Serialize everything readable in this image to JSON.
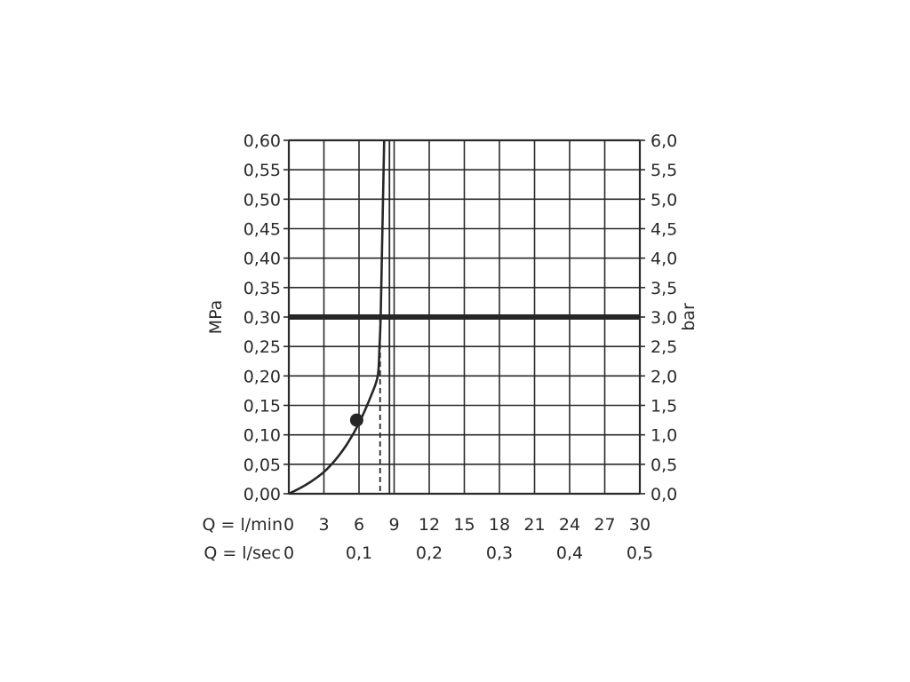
{
  "chart_data": {
    "type": "line",
    "title": "",
    "ylabel_left": "MPa",
    "ylabel_right": "bar",
    "x_primary": {
      "label": "Q = l/min",
      "range": [
        0,
        30
      ],
      "ticks": [
        "0",
        "3",
        "6",
        "9",
        "12",
        "15",
        "18",
        "21",
        "24",
        "27",
        "30"
      ]
    },
    "x_secondary": {
      "label": "Q = l/sec",
      "ticks": [
        {
          "value": 0,
          "text": "0"
        },
        {
          "value": 0.1,
          "text": "0,1"
        },
        {
          "value": 0.2,
          "text": "0,2"
        },
        {
          "value": 0.3,
          "text": "0,3"
        },
        {
          "value": 0.4,
          "text": "0,4"
        },
        {
          "value": 0.5,
          "text": "0,5"
        }
      ]
    },
    "y_left": {
      "range": [
        0,
        0.6
      ],
      "ticks": [
        "0,00",
        "0,05",
        "0,10",
        "0,15",
        "0,20",
        "0,25",
        "0,30",
        "0,35",
        "0,40",
        "0,45",
        "0,50",
        "0,55",
        "0,60"
      ]
    },
    "y_right": {
      "range": [
        0,
        6
      ],
      "ticks": [
        "0,0",
        "0,5",
        "1,0",
        "1,5",
        "2,0",
        "2,5",
        "3,0",
        "3,5",
        "4,0",
        "4,5",
        "5,0",
        "5,5",
        "6,0"
      ]
    },
    "grid": true,
    "series": [
      {
        "values": [
          [
            0,
            0
          ],
          [
            1,
            0.01
          ],
          [
            2,
            0.022
          ],
          [
            3,
            0.037
          ],
          [
            4,
            0.058
          ],
          [
            5,
            0.085
          ],
          [
            6,
            0.12
          ],
          [
            7,
            0.165
          ],
          [
            7.6,
            0.2
          ],
          [
            7.75,
            0.25
          ],
          [
            7.85,
            0.3
          ],
          [
            7.95,
            0.4
          ],
          [
            8.05,
            0.5
          ],
          [
            8.15,
            0.6
          ]
        ]
      }
    ],
    "marker": {
      "x": 5.8,
      "y": 0.125
    },
    "reference_lines": [
      {
        "orientation": "horizontal",
        "y": 0.3,
        "style": "thick"
      },
      {
        "orientation": "vertical",
        "x": 8.6,
        "style": "solid",
        "from": 0.6,
        "to": 0
      },
      {
        "orientation": "vertical",
        "x": 7.8,
        "style": "dashed",
        "from": 0.3,
        "to": 0
      }
    ]
  }
}
